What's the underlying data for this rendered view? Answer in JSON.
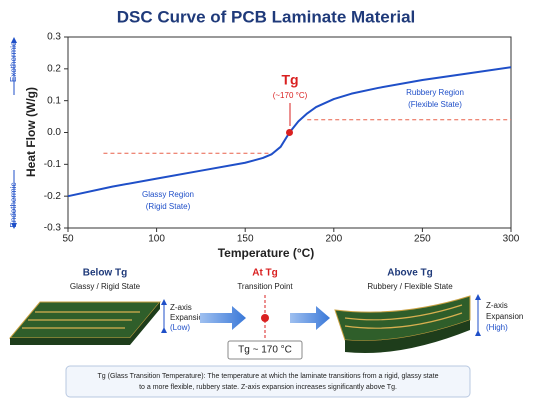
{
  "chart_data": {
    "type": "line",
    "title": "DSC Curve of PCB Laminate Material",
    "x_label": "Temperature (°C)",
    "y_label": "Heat Flow (W/g)",
    "x": [
      50,
      75,
      100,
      125,
      150,
      160,
      165,
      170,
      175,
      180,
      185,
      190,
      200,
      210,
      225,
      250,
      275,
      300
    ],
    "series": [
      {
        "color": "#1f4fc8",
        "values": [
          -0.2,
          -0.17,
          -0.145,
          -0.12,
          -0.095,
          -0.08,
          -0.068,
          -0.045,
          0,
          0.035,
          0.06,
          0.08,
          0.105,
          0.122,
          0.14,
          0.165,
          0.185,
          0.205
        ]
      }
    ],
    "xlim": [
      50,
      300
    ],
    "xticks": [
      50,
      100,
      150,
      200,
      250,
      300
    ],
    "ylim": [
      -0.3,
      0.3
    ],
    "yticks": [
      0.3,
      0.2,
      0.1,
      {
        "value": 0,
        "label": "0.0"
      },
      -0.1,
      -0.2,
      -0.3
    ],
    "reference_lines": [
      {
        "y": -0.065,
        "x": [
          70,
          165
        ],
        "color": "#e8604a"
      },
      {
        "y": 0.04,
        "x": [
          185,
          300
        ],
        "color": "#e8604a"
      }
    ],
    "marker": {
      "x": 175,
      "y": 0,
      "color": "#d92020"
    },
    "annotations": {
      "tg": "Tg",
      "tg_value": "(~170 °C)",
      "rubbery": "Rubbery Region",
      "rubbery_state": "(Flexible State)",
      "glassy": "Glassy Region",
      "glassy_state": "(Rigid State)",
      "exo": "Exothermic",
      "endo": "Endothermic"
    }
  },
  "panels": {
    "below": {
      "title": "Below Tg",
      "subtitle": "Glassy / Rigid State",
      "axis": [
        "Z-axis",
        "Expansion",
        "(Low)"
      ]
    },
    "at": {
      "title": "At Tg",
      "subtitle": "Transition Point",
      "box": "Tg ~ 170 °C"
    },
    "above": {
      "title": "Above Tg",
      "subtitle": "Rubbery / Flexible State",
      "axis": [
        "Z-axis",
        "Expansion",
        "(High)"
      ]
    },
    "note": [
      "Tg (Glass Transition Temperature): The temperature at which the laminate transitions from a rigid, glassy state",
      "to a more flexible, rubbery state. Z-axis expansion increases significantly above Tg."
    ]
  }
}
